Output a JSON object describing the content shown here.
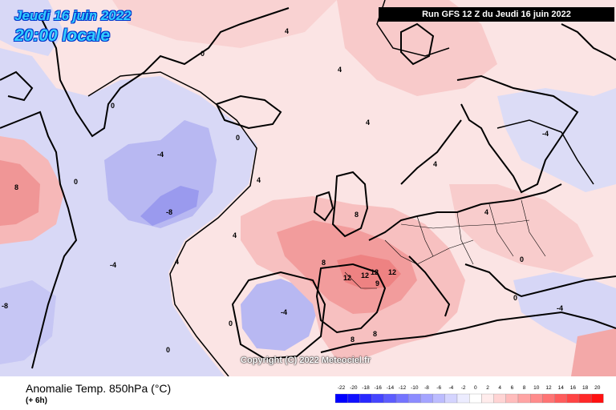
{
  "header": {
    "date": "Jeudi 16 juin 2022",
    "time": "20:00 locale",
    "run": "Run GFS 12 Z du Jeudi 16 juin 2022"
  },
  "copyright": "Copyright (C) 2022 Meteociel.fr",
  "footer": {
    "title": "Anomalie Temp. 850hPa (°C)",
    "subtitle": "(+ 6h)"
  },
  "legend": {
    "values": [
      "-22",
      "-20",
      "-18",
      "-16",
      "-14",
      "-12",
      "-10",
      "-8",
      "-6",
      "-4",
      "-2",
      "0",
      "2",
      "4",
      "6",
      "8",
      "10",
      "12",
      "14",
      "16",
      "18",
      "20"
    ],
    "colors": [
      "#0000ff",
      "#1010ff",
      "#2828ff",
      "#4444ff",
      "#5c5cff",
      "#7474ff",
      "#8c8cff",
      "#a4a4ff",
      "#bcbcff",
      "#d4d4ff",
      "#ececff",
      "#ffffff",
      "#ffecec",
      "#ffd4d4",
      "#ffbcbc",
      "#ffa4a4",
      "#ff8c8c",
      "#ff7474",
      "#ff5c5c",
      "#ff4444",
      "#ff2828",
      "#ff1010"
    ]
  },
  "map_labels": {
    "zero": "0",
    "minus4": "-4",
    "minus8": "-8",
    "plus4": "4",
    "plus8": "8",
    "plus12": "12",
    "plus9": "9"
  },
  "palette": {
    "cold_strong": "#8c8cff",
    "cold_mid": "#b4b4f4",
    "cold_light": "#d6d6f6",
    "warm_light": "#fbdede",
    "warm_mid": "#f8b8b8",
    "warm_strong": "#f08c8c",
    "coast": "#000000",
    "border": "#000000"
  }
}
